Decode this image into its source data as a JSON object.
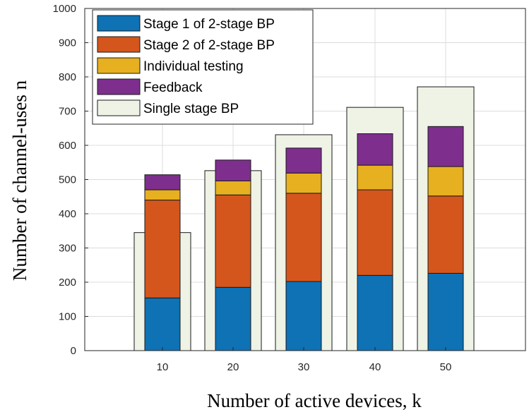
{
  "chart_data": {
    "type": "bar",
    "title": "",
    "xlabel": "Number of active devices, k",
    "ylabel": "Number of channel-uses n",
    "categories": [
      "10",
      "20",
      "30",
      "40",
      "50"
    ],
    "ylim": [
      0,
      1000
    ],
    "yticks": [
      0,
      100,
      200,
      300,
      400,
      500,
      600,
      700,
      800,
      900,
      1000
    ],
    "grid": true,
    "legend_position": "top-left",
    "stacked_series": [
      {
        "name": "Stage 1 of 2-stage BP",
        "color": "#0e72b5",
        "values": [
          154,
          185,
          202,
          220,
          226
        ]
      },
      {
        "name": "Stage 2 of 2-stage BP",
        "color": "#d5561c",
        "values": [
          286,
          270,
          258,
          250,
          226
        ]
      },
      {
        "name": "Individual testing",
        "color": "#e6b020",
        "values": [
          30,
          41,
          59,
          72,
          86
        ]
      },
      {
        "name": "Feedback",
        "color": "#7e2f8e",
        "values": [
          44,
          61,
          73,
          92,
          117
        ]
      }
    ],
    "background_series": {
      "name": "Single stage BP",
      "color": "#eef3e6",
      "values": [
        345,
        526,
        631,
        711,
        771
      ]
    }
  }
}
